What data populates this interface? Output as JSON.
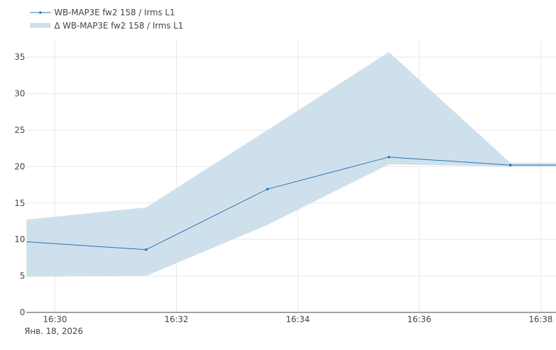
{
  "chart_data": {
    "type": "line",
    "x_labels": [
      "16:30",
      "16:32",
      "16:34",
      "16:36",
      "16:38"
    ],
    "x_sublabel": "Янв. 18, 2026",
    "y_ticks": [
      0,
      5,
      10,
      15,
      20,
      25,
      30,
      35
    ],
    "ylim": [
      0,
      37.3
    ],
    "grid": true,
    "legend_position": "top-left",
    "series": [
      {
        "name": "WB-MAP3E fw2 158 / Irms L1",
        "kind": "line",
        "color": "#1f77b4",
        "points": [
          {
            "t": "16:29:30",
            "y": 9.7
          },
          {
            "t": "16:31:30",
            "y": 8.6
          },
          {
            "t": "16:33:30",
            "y": 16.9
          },
          {
            "t": "16:35:30",
            "y": 21.3
          },
          {
            "t": "16:37:30",
            "y": 20.2
          },
          {
            "t": "16:38:30",
            "y": 20.2
          }
        ]
      },
      {
        "name": "Δ WB-MAP3E fw2 158 / Irms L1",
        "kind": "band",
        "color": "#cfe0ed",
        "upper": [
          {
            "t": "16:29:30",
            "y": 12.7
          },
          {
            "t": "16:31:30",
            "y": 14.4
          },
          {
            "t": "16:33:30",
            "y": 25.0
          },
          {
            "t": "16:35:30",
            "y": 35.7
          },
          {
            "t": "16:37:30",
            "y": 20.5
          },
          {
            "t": "16:38:30",
            "y": 20.5
          }
        ],
        "lower": [
          {
            "t": "16:29:30",
            "y": 4.9
          },
          {
            "t": "16:31:30",
            "y": 5.0
          },
          {
            "t": "16:33:30",
            "y": 12.0
          },
          {
            "t": "16:35:30",
            "y": 20.3
          },
          {
            "t": "16:37:30",
            "y": 20.0
          },
          {
            "t": "16:38:30",
            "y": 20.0
          }
        ]
      }
    ]
  }
}
